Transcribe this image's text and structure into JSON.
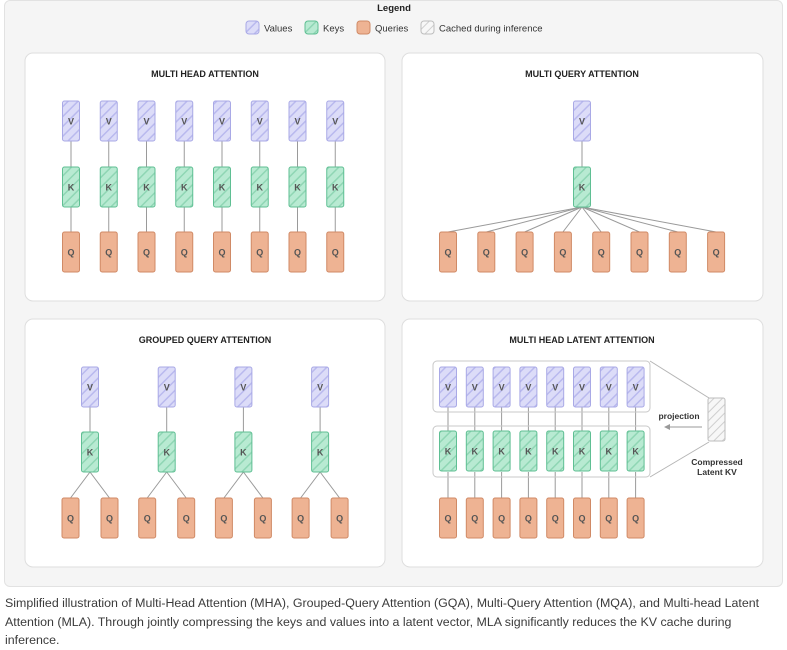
{
  "legend": {
    "title": "Legend",
    "items": [
      {
        "label": "Values",
        "fill": "#dcdcf8",
        "stroke": "#a9a9e6",
        "hatched": true
      },
      {
        "label": "Keys",
        "fill": "#b8ead2",
        "stroke": "#5fbf93",
        "hatched": true
      },
      {
        "label": "Queries",
        "fill": "#eeb393",
        "stroke": "#d08a66",
        "hatched": false
      },
      {
        "label": "Cached during inference",
        "fill": "#f6f6f6",
        "stroke": "#bdbdbd",
        "hatched": true
      }
    ]
  },
  "colors": {
    "value_fill": "#dcdcf8",
    "value_stroke": "#a9a9e6",
    "key_fill": "#b8ead2",
    "key_stroke": "#5fbf93",
    "query_fill": "#eeb393",
    "query_stroke": "#d08a66",
    "line": "#9a9a9a",
    "panel_bg": "#ffffff",
    "panel_border": "#dedede"
  },
  "labels": {
    "value": "V",
    "key": "K",
    "query": "Q"
  },
  "panels": {
    "mha": {
      "title": "MULTI HEAD ATTENTION",
      "heads": 8
    },
    "mqa": {
      "title": "MULTI QUERY ATTENTION",
      "queries": 8,
      "kv_heads": 1
    },
    "gqa": {
      "title": "GROUPED QUERY ATTENTION",
      "groups": 4,
      "queries_per_group": 2
    },
    "mla": {
      "title": "MULTI HEAD LATENT ATTENTION",
      "heads": 8,
      "projection_label": "projection",
      "latent_label_line1": "Compressed",
      "latent_label_line2": "Latent KV"
    }
  },
  "caption": "Simplified illustration of Multi-Head Attention (MHA), Grouped-Query Attention (GQA), Multi-Query Attention (MQA), and Multi-head Latent Attention (MLA). Through jointly compressing the keys and values into a latent vector, MLA significantly reduces the KV cache during inference."
}
